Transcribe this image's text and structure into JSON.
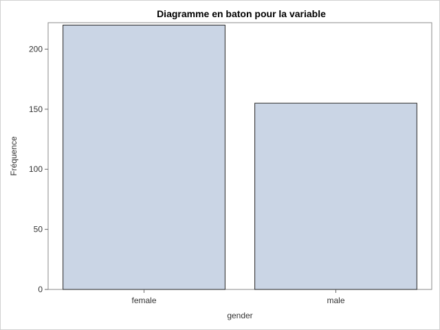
{
  "chart_data": {
    "type": "bar",
    "title": "Diagramme en baton pour la variable",
    "xlabel": "gender",
    "ylabel": "Fréquence",
    "categories": [
      "female",
      "male"
    ],
    "values": [
      220,
      155
    ],
    "ylim": [
      0,
      222
    ],
    "yticks": [
      "0",
      "50",
      "100",
      "150",
      "200"
    ],
    "ytick_values": [
      0,
      50,
      100,
      150,
      200
    ],
    "grid": false,
    "colors": {
      "bar_fill": "#cad5e5",
      "bar_stroke": "#222222",
      "axis": "#666666"
    }
  }
}
